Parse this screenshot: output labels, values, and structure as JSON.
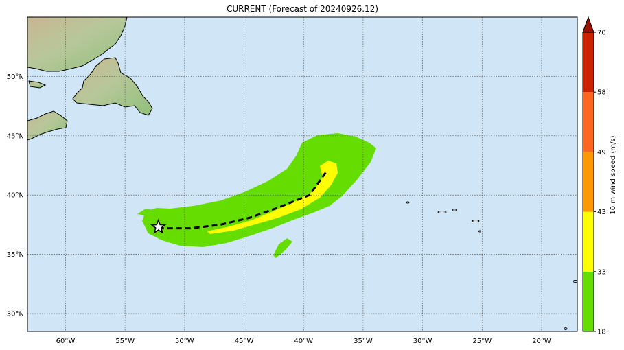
{
  "title": "CURRENT (Forecast of 20240926.12)",
  "map": {
    "ocean_color": "#d0e6f6",
    "lon_range": [
      -63.2,
      -17.0
    ],
    "lat_range": [
      28.5,
      55.0
    ],
    "lon_ticks": [
      {
        "value": -60,
        "label": "60°W"
      },
      {
        "value": -55,
        "label": "55°W"
      },
      {
        "value": -50,
        "label": "50°W"
      },
      {
        "value": -45,
        "label": "45°W"
      },
      {
        "value": -40,
        "label": "40°W"
      },
      {
        "value": -35,
        "label": "35°W"
      },
      {
        "value": -30,
        "label": "30°W"
      },
      {
        "value": -25,
        "label": "25°W"
      },
      {
        "value": -20,
        "label": "20°W"
      }
    ],
    "lat_ticks": [
      {
        "value": 30,
        "label": "30°N"
      },
      {
        "value": 35,
        "label": "35°N"
      },
      {
        "value": 40,
        "label": "40°N"
      },
      {
        "value": 45,
        "label": "45°N"
      },
      {
        "value": 50,
        "label": "50°N"
      }
    ],
    "current_position": {
      "lon": -52.2,
      "lat": 37.3
    },
    "forecast_track": [
      {
        "lon": -52.2,
        "lat": 37.2
      },
      {
        "lon": -49.5,
        "lat": 37.2
      },
      {
        "lon": -47.0,
        "lat": 37.5
      },
      {
        "lon": -44.5,
        "lat": 38.1
      },
      {
        "lon": -42.0,
        "lat": 39.0
      },
      {
        "lon": -39.5,
        "lat": 40.0
      },
      {
        "lon": -38.0,
        "lat": 42.1
      }
    ]
  },
  "colorbar": {
    "label": "10 m wind speed (m/s)",
    "levels": [
      {
        "value": "18",
        "color": "#66dd00"
      },
      {
        "value": "33",
        "color": "#ffff00"
      },
      {
        "value": "43",
        "color": "#ff9900"
      },
      {
        "value": "49",
        "color": "#ff6622"
      },
      {
        "value": "58",
        "color": "#cc2200"
      },
      {
        "value": "70",
        "color": "#991100"
      }
    ]
  },
  "legend_icons": [
    "star-icon"
  ]
}
